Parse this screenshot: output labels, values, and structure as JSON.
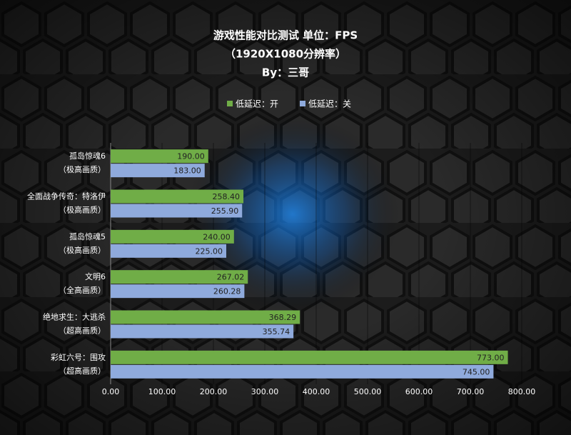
{
  "chart_data": {
    "type": "hbar",
    "title": [
      "游戏性能对比测试 单位：FPS",
      "（1920X1080分辨率）",
      "By：三哥"
    ],
    "categories": [
      [
        "孤岛惊魂6",
        "（极高画质）"
      ],
      [
        "全面战争传奇：特洛伊",
        "（极高画质）"
      ],
      [
        "孤岛惊魂5",
        "（极高画质）"
      ],
      [
        "文明6",
        "（全高画质）"
      ],
      [
        "绝地求生：大逃杀",
        "（超高画质）"
      ],
      [
        "彩虹六号：围攻",
        "（超高画质）"
      ]
    ],
    "series": [
      {
        "name": "低延迟：开",
        "color": "#70ad47",
        "values": [
          190.0,
          258.4,
          240.0,
          267.02,
          368.29,
          773.0
        ],
        "value_labels": [
          "190.00",
          "258.40",
          "240.00",
          "267.02",
          "368.29",
          "773.00"
        ]
      },
      {
        "name": "低延迟：关",
        "color": "#8faadc",
        "values": [
          183.0,
          255.9,
          225.0,
          260.28,
          355.74,
          745.0
        ],
        "value_labels": [
          "183.00",
          "255.90",
          "225.00",
          "260.28",
          "355.74",
          "745.00"
        ]
      }
    ],
    "xlim": [
      0,
      800
    ],
    "xticks": [
      {
        "value": 0,
        "label": "0.00"
      },
      {
        "value": 100,
        "label": "100.00"
      },
      {
        "value": 200,
        "label": "200.00"
      },
      {
        "value": 300,
        "label": "300.00"
      },
      {
        "value": 400,
        "label": "400.00"
      },
      {
        "value": 500,
        "label": "500.00"
      },
      {
        "value": 600,
        "label": "600.00"
      },
      {
        "value": 700,
        "label": "700.00"
      },
      {
        "value": 800,
        "label": "800.00"
      }
    ],
    "grid": true,
    "legend": "top"
  }
}
